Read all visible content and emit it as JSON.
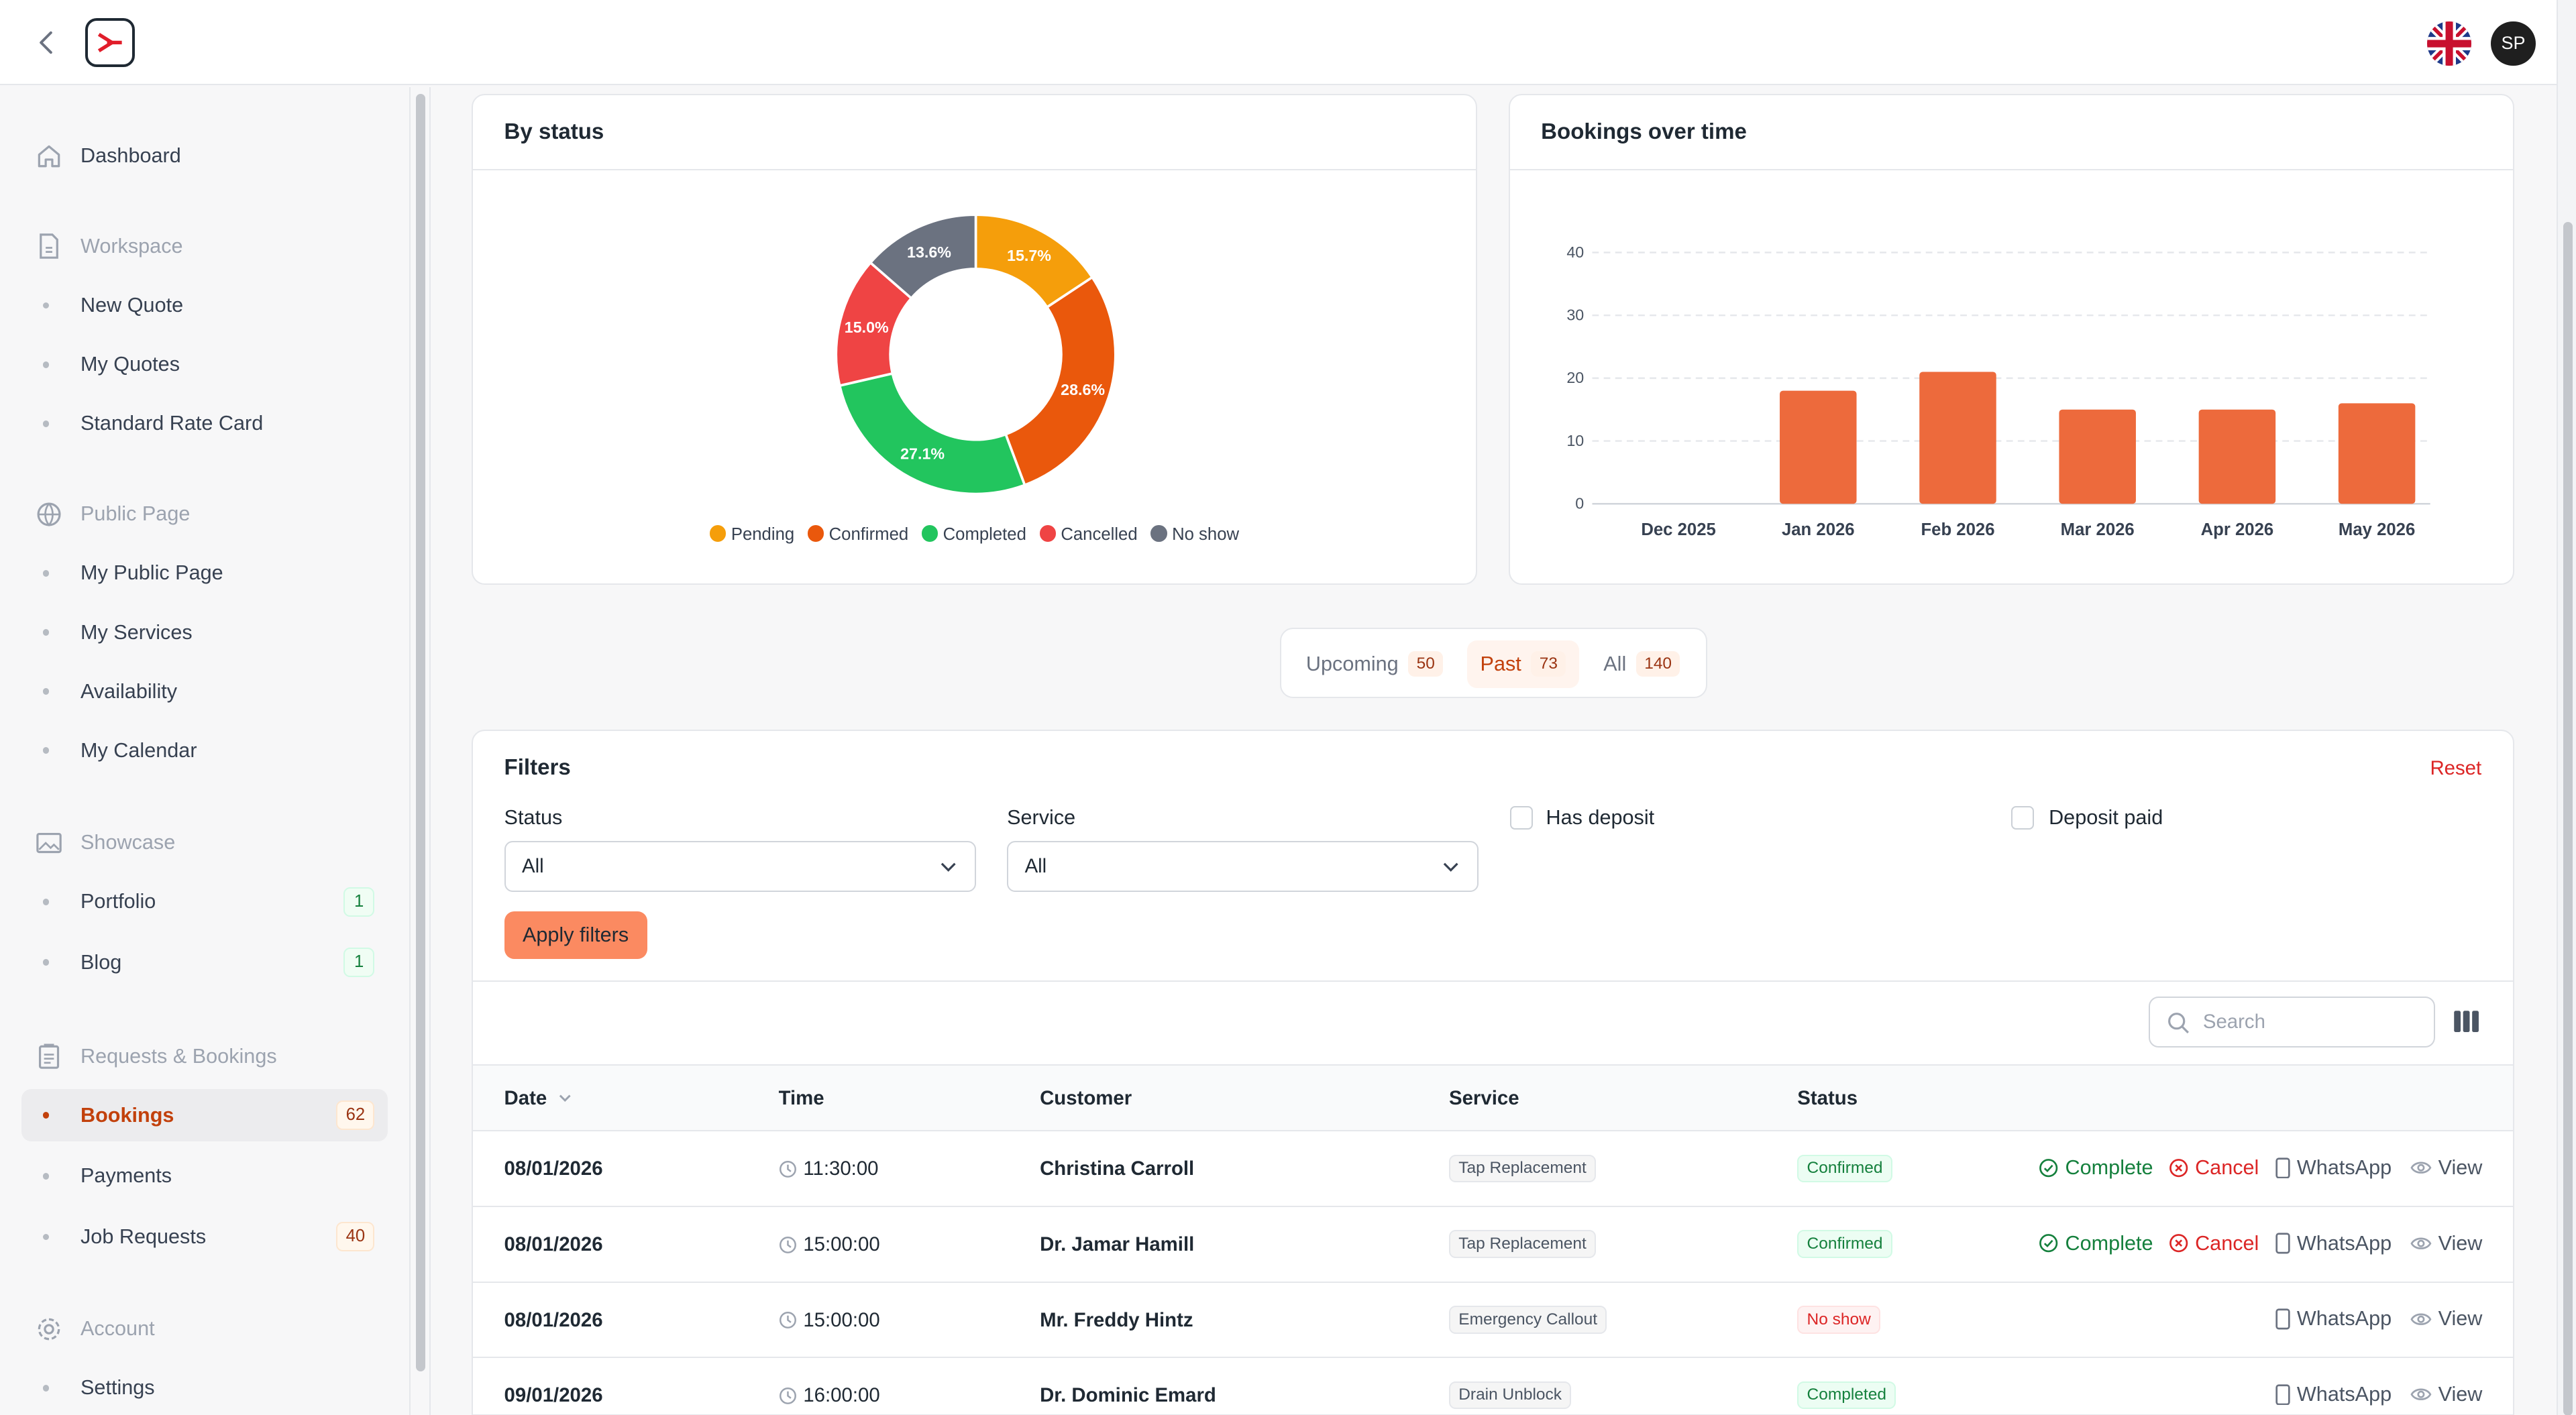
{
  "header": {
    "avatar_initials": "SP",
    "language_flag": "uk-flag-icon"
  },
  "sidebar": {
    "dashboard": "Dashboard",
    "workspace": {
      "label": "Workspace",
      "items": [
        "New Quote",
        "My Quotes",
        "Standard Rate Card"
      ]
    },
    "public_page": {
      "label": "Public Page",
      "items": [
        "My Public Page",
        "My Services",
        "Availability",
        "My Calendar"
      ]
    },
    "showcase": {
      "label": "Showcase",
      "portfolio": "Portfolio",
      "portfolio_count": "1",
      "blog": "Blog",
      "blog_count": "1"
    },
    "requests": {
      "label": "Requests & Bookings",
      "bookings": "Bookings",
      "bookings_count": "62",
      "payments": "Payments",
      "job_requests": "Job Requests",
      "job_requests_count": "40"
    },
    "account": {
      "label": "Account",
      "settings": "Settings"
    }
  },
  "chart_data": [
    {
      "type": "pie",
      "title": "By status",
      "donut": true,
      "categories": [
        "Pending",
        "Confirmed",
        "Completed",
        "Cancelled",
        "No show"
      ],
      "values": [
        15.7,
        28.6,
        27.1,
        15.0,
        13.6
      ],
      "labels": [
        "15.7%",
        "28.6%",
        "27.1%",
        "15.0%",
        "13.6%"
      ],
      "colors": [
        "#f59e0b",
        "#ea580c",
        "#22c55e",
        "#ef4444",
        "#6b7280"
      ],
      "legend": "bottom"
    },
    {
      "type": "bar",
      "title": "Bookings over time",
      "categories": [
        "Dec 2025",
        "Jan 2026",
        "Feb 2026",
        "Mar 2026",
        "Apr 2026",
        "May 2026"
      ],
      "values": [
        0,
        18,
        21,
        15,
        15,
        16
      ],
      "ylim": [
        0,
        40
      ],
      "yticks": [
        "0",
        "10",
        "20",
        "30",
        "40"
      ],
      "color": "#ed6a3c",
      "grid": true
    }
  ],
  "tabs": [
    {
      "label": "Upcoming",
      "count": "50"
    },
    {
      "label": "Past",
      "count": "73"
    },
    {
      "label": "All",
      "count": "140"
    }
  ],
  "filters": {
    "title": "Filters",
    "reset": "Reset",
    "status_label": "Status",
    "status_value": "All",
    "service_label": "Service",
    "service_value": "All",
    "has_deposit": "Has deposit",
    "deposit_paid": "Deposit paid",
    "apply": "Apply filters"
  },
  "table": {
    "search_placeholder": "Search",
    "headers": {
      "date": "Date",
      "time": "Time",
      "customer": "Customer",
      "service": "Service",
      "status": "Status"
    },
    "actions": {
      "complete": "Complete",
      "cancel": "Cancel",
      "whatsapp": "WhatsApp",
      "view": "View"
    },
    "rows": [
      {
        "date": "08/01/2026",
        "time": "11:30:00",
        "customer": "Christina Carroll",
        "service": "Tap Replacement",
        "status": "Confirmed"
      },
      {
        "date": "08/01/2026",
        "time": "15:00:00",
        "customer": "Dr. Jamar Hamill",
        "service": "Tap Replacement",
        "status": "Confirmed"
      },
      {
        "date": "08/01/2026",
        "time": "15:00:00",
        "customer": "Mr. Freddy Hintz",
        "service": "Emergency Callout",
        "status": "No show"
      },
      {
        "date": "09/01/2026",
        "time": "16:00:00",
        "customer": "Dr. Dominic Emard",
        "service": "Drain Unblock",
        "status": "Completed"
      }
    ]
  }
}
